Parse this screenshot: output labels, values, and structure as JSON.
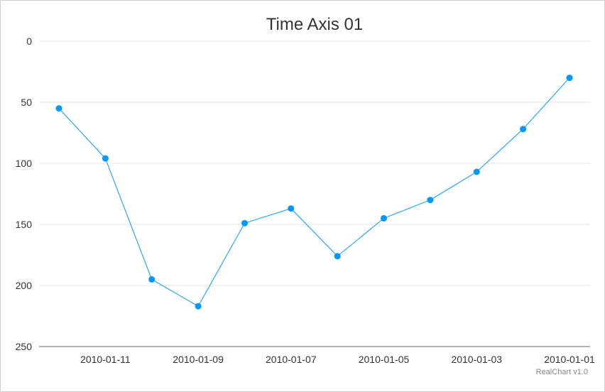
{
  "chart_data": {
    "type": "line",
    "title": "Time Axis 01",
    "xlabel": "",
    "ylabel": "",
    "x_axis": {
      "type": "time",
      "reversed": true,
      "range": [
        "2010-01-01",
        "2010-01-12"
      ],
      "ticks": [
        "2010-01-11",
        "2010-01-09",
        "2010-01-07",
        "2010-01-05",
        "2010-01-03",
        "2010-01-01"
      ]
    },
    "y_axis": {
      "reversed": true,
      "ylim": [
        0,
        250
      ],
      "ticks": [
        0,
        50,
        100,
        150,
        200,
        250
      ]
    },
    "grid": true,
    "series": [
      {
        "color": "#0098ff",
        "points": [
          {
            "x": "2010-01-12",
            "y": 55
          },
          {
            "x": "2010-01-11",
            "y": 96
          },
          {
            "x": "2010-01-10",
            "y": 195
          },
          {
            "x": "2010-01-09",
            "y": 217
          },
          {
            "x": "2010-01-08",
            "y": 149
          },
          {
            "x": "2010-01-07",
            "y": 137
          },
          {
            "x": "2010-01-06",
            "y": 176
          },
          {
            "x": "2010-01-05",
            "y": 145
          },
          {
            "x": "2010-01-04",
            "y": 130
          },
          {
            "x": "2010-01-03",
            "y": 107
          },
          {
            "x": "2010-01-02",
            "y": 72
          },
          {
            "x": "2010-01-01",
            "y": 30
          }
        ]
      }
    ],
    "credit": "RealChart v1.0"
  }
}
